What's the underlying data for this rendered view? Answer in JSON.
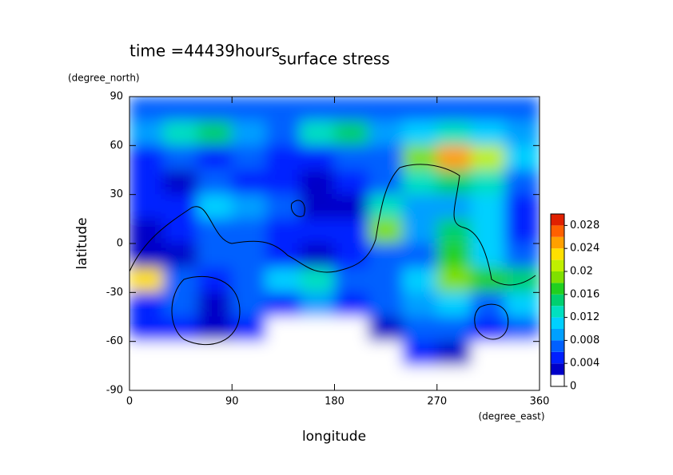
{
  "chart_data": {
    "type": "contour",
    "title": "surface stress",
    "subtitle": "time =44439hours",
    "xlabel": "longitude",
    "xunit": "(degree_east)",
    "ylabel": "latitude",
    "yunit": "(degree_north)",
    "xlim": [
      0,
      360
    ],
    "xticks": [
      0,
      90,
      180,
      270,
      360
    ],
    "ylim": [
      -90,
      90
    ],
    "yticks": [
      -90,
      -60,
      -30,
      0,
      30,
      60,
      90
    ],
    "x": [
      15,
      45,
      75,
      105,
      135,
      165,
      195,
      225,
      255,
      285,
      315,
      345
    ],
    "y": [
      82.5,
      67.5,
      52.5,
      37.5,
      22.5,
      7.5,
      -7.5,
      -22.5,
      -37.5,
      -52.5,
      -67.5,
      -82.5
    ],
    "z": [
      [
        0.006,
        0.007,
        0.006,
        0.006,
        0.006,
        0.007,
        0.006,
        0.006,
        0.006,
        0.007,
        0.006,
        0.006
      ],
      [
        0.008,
        0.012,
        0.014,
        0.008,
        0.006,
        0.012,
        0.014,
        0.008,
        0.01,
        0.012,
        0.01,
        0.008
      ],
      [
        0.005,
        0.006,
        0.004,
        0.006,
        0.005,
        0.004,
        0.006,
        0.006,
        0.018,
        0.024,
        0.02,
        0.01
      ],
      [
        0.004,
        0.002,
        0.006,
        0.004,
        0.004,
        0.002,
        0.004,
        0.006,
        0.012,
        0.014,
        0.012,
        0.006
      ],
      [
        0.004,
        0.004,
        0.01,
        0.008,
        0.006,
        0.002,
        0.002,
        0.012,
        0.008,
        0.008,
        0.01,
        0.004
      ],
      [
        0.002,
        0.004,
        0.006,
        0.006,
        0.004,
        0.004,
        0.004,
        0.018,
        0.008,
        0.014,
        0.01,
        0.004
      ],
      [
        0.002,
        0.002,
        0.006,
        0.006,
        0.004,
        0.002,
        0.004,
        0.006,
        0.006,
        0.016,
        0.01,
        0.006
      ],
      [
        0.022,
        0.006,
        0.004,
        0.006,
        0.01,
        0.012,
        0.006,
        0.006,
        0.01,
        0.018,
        0.016,
        0.014
      ],
      [
        0.004,
        0.006,
        0.002,
        0.006,
        0.004,
        0.008,
        0.004,
        0.006,
        0.008,
        0.01,
        0.006,
        0.01
      ],
      [
        0.004,
        0.004,
        0.002,
        0.004,
        0,
        0,
        0,
        0.002,
        0.006,
        0.006,
        0.004,
        0.006
      ],
      [
        0,
        0,
        0,
        0,
        0,
        0,
        0,
        0,
        0.004,
        0.002,
        0,
        0
      ],
      [
        0,
        0,
        0,
        0,
        0,
        0,
        0,
        0,
        0,
        0,
        0,
        0
      ]
    ],
    "colorbar": {
      "lim": [
        0,
        0.03
      ],
      "ticks": [
        0,
        0.004,
        0.008,
        0.012,
        0.016,
        0.02,
        0.024,
        0.028
      ],
      "colors": [
        "#ffffff",
        "#0000c8",
        "#0020ff",
        "#0060ff",
        "#00a0ff",
        "#00d0ff",
        "#00e0c0",
        "#00d070",
        "#20d020",
        "#80e000",
        "#c0f000",
        "#ffe000",
        "#ffa000",
        "#ff6000",
        "#e02000"
      ]
    }
  }
}
